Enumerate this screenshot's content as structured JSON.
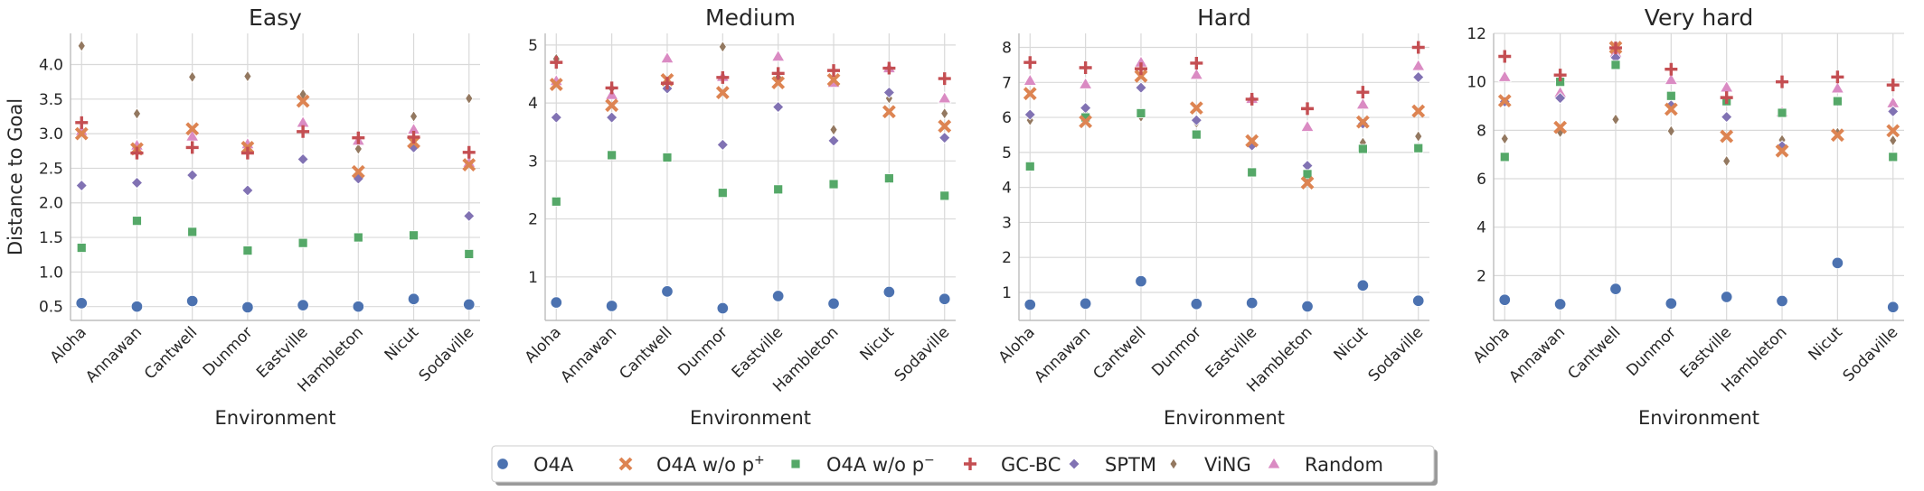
{
  "chart_data": {
    "type": "scatter",
    "ylabel": "Distance to Goal",
    "xlabel": "Environment",
    "categories": [
      "Aloha",
      "Annawan",
      "Cantwell",
      "Dunmor",
      "Eastville",
      "Hambleton",
      "Nicut",
      "Sodaville"
    ],
    "legend": {
      "placement": "bottom-center",
      "entries": [
        {
          "label": "O4A",
          "sup": "",
          "marker": "circle",
          "color": "#4c72b0"
        },
        {
          "label": "O4A w/o p",
          "sup": "+",
          "marker": "x",
          "color": "#dd8452"
        },
        {
          "label": "O4A w/o p",
          "sup": "−",
          "marker": "square",
          "color": "#55a868"
        },
        {
          "label": "GC-BC",
          "sup": "",
          "marker": "plus",
          "color": "#c44e52"
        },
        {
          "label": "SPTM",
          "sup": "",
          "marker": "diamond",
          "color": "#8172b3"
        },
        {
          "label": "ViNG",
          "sup": "",
          "marker": "thin-diamond",
          "color": "#937860"
        },
        {
          "label": "Random",
          "sup": "",
          "marker": "triangle",
          "color": "#da8bc3"
        }
      ]
    },
    "grid": true,
    "panels": [
      {
        "title": "Easy",
        "ylim": [
          0.3,
          4.45
        ],
        "yticks": [
          0.5,
          1.0,
          1.5,
          2.0,
          2.5,
          3.0,
          3.5,
          4.0
        ],
        "ytick_labels": [
          "0.5",
          "1.0",
          "1.5",
          "2.0",
          "2.5",
          "3.0",
          "3.5",
          "4.0"
        ],
        "series": [
          {
            "values": [
              0.55,
              0.5,
              0.58,
              0.49,
              0.52,
              0.5,
              0.61,
              0.53
            ]
          },
          {
            "values": [
              3.0,
              2.78,
              3.07,
              2.8,
              3.47,
              2.45,
              2.88,
              2.55
            ]
          },
          {
            "values": [
              1.35,
              1.74,
              1.58,
              1.31,
              1.42,
              1.5,
              1.53,
              1.26
            ]
          },
          {
            "values": [
              3.16,
              2.72,
              2.8,
              2.72,
              3.03,
              2.94,
              2.95,
              2.73
            ]
          },
          {
            "values": [
              2.25,
              2.29,
              2.4,
              2.18,
              2.63,
              2.35,
              2.8,
              1.81
            ]
          },
          {
            "values": [
              4.27,
              3.29,
              3.82,
              3.83,
              3.57,
              2.78,
              3.25,
              3.51
            ]
          },
          {
            "values": [
              3.04,
              2.83,
              2.96,
              2.85,
              3.16,
              2.9,
              3.06,
              2.58
            ]
          }
        ]
      },
      {
        "title": "Medium",
        "ylim": [
          0.25,
          5.2
        ],
        "yticks": [
          1,
          2,
          3,
          4,
          5
        ],
        "ytick_labels": [
          "1",
          "2",
          "3",
          "4",
          "5"
        ],
        "series": [
          {
            "values": [
              0.56,
              0.5,
              0.75,
              0.46,
              0.67,
              0.54,
              0.74,
              0.62
            ]
          },
          {
            "values": [
              4.32,
              3.96,
              4.4,
              4.18,
              4.35,
              4.4,
              3.85,
              3.6
            ]
          },
          {
            "values": [
              2.3,
              3.1,
              3.06,
              2.45,
              2.51,
              2.6,
              2.7,
              2.4
            ]
          },
          {
            "values": [
              4.7,
              4.26,
              4.34,
              4.44,
              4.51,
              4.56,
              4.6,
              4.42
            ]
          },
          {
            "values": [
              3.75,
              3.75,
              4.25,
              3.28,
              3.93,
              3.35,
              4.18,
              3.4
            ]
          },
          {
            "values": [
              4.76,
              4.25,
              4.27,
              4.97,
              4.44,
              3.54,
              4.08,
              3.82
            ]
          },
          {
            "values": [
              4.38,
              4.14,
              4.77,
              4.45,
              4.8,
              4.35,
              4.6,
              4.08
            ]
          }
        ]
      },
      {
        "title": "Hard",
        "ylim": [
          0.2,
          8.4
        ],
        "yticks": [
          1,
          2,
          3,
          4,
          5,
          6,
          7,
          8
        ],
        "ytick_labels": [
          "1",
          "2",
          "3",
          "4",
          "5",
          "6",
          "7",
          "8"
        ],
        "series": [
          {
            "values": [
              0.65,
              0.68,
              1.32,
              0.67,
              0.7,
              0.6,
              1.2,
              0.76
            ]
          },
          {
            "values": [
              6.68,
              5.88,
              7.18,
              6.27,
              5.33,
              4.13,
              5.87,
              6.18
            ]
          },
          {
            "values": [
              4.6,
              6.0,
              6.12,
              5.51,
              4.43,
              4.38,
              5.1,
              5.12
            ]
          },
          {
            "values": [
              7.57,
              7.42,
              7.39,
              7.55,
              6.52,
              6.25,
              6.72,
              8.0
            ]
          },
          {
            "values": [
              6.08,
              6.27,
              6.85,
              5.92,
              5.2,
              4.62,
              5.82,
              7.15
            ]
          },
          {
            "values": [
              5.92,
              6.1,
              6.02,
              5.85,
              5.22,
              4.32,
              5.28,
              5.46
            ]
          },
          {
            "values": [
              7.05,
              6.95,
              7.57,
              7.22,
              6.53,
              5.73,
              6.37,
              7.47
            ]
          }
        ]
      },
      {
        "title": "Very hard",
        "ylim": [
          0.15,
          12.0
        ],
        "yticks": [
          2,
          4,
          6,
          8,
          10,
          12
        ],
        "ytick_labels": [
          "2",
          "4",
          "6",
          "8",
          "10",
          "12"
        ],
        "series": [
          {
            "values": [
              1.0,
              0.82,
              1.45,
              0.85,
              1.12,
              0.95,
              2.52,
              0.7
            ]
          },
          {
            "values": [
              9.22,
              8.12,
              11.42,
              8.87,
              7.75,
              7.15,
              7.8,
              7.98
            ]
          },
          {
            "values": [
              6.9,
              10.0,
              10.7,
              9.42,
              9.2,
              8.72,
              9.2,
              6.9
            ]
          },
          {
            "values": [
              11.05,
              10.28,
              11.4,
              10.52,
              9.35,
              10.0,
              10.2,
              9.87
            ]
          },
          {
            "values": [
              9.18,
              9.33,
              11.0,
              9.03,
              8.55,
              7.35,
              9.18,
              8.78
            ]
          },
          {
            "values": [
              7.65,
              7.92,
              8.45,
              7.97,
              6.73,
              7.6,
              7.9,
              7.58
            ]
          },
          {
            "values": [
              10.2,
              9.55,
              11.2,
              10.08,
              9.77,
              8.75,
              9.73,
              9.12
            ]
          }
        ]
      }
    ]
  }
}
